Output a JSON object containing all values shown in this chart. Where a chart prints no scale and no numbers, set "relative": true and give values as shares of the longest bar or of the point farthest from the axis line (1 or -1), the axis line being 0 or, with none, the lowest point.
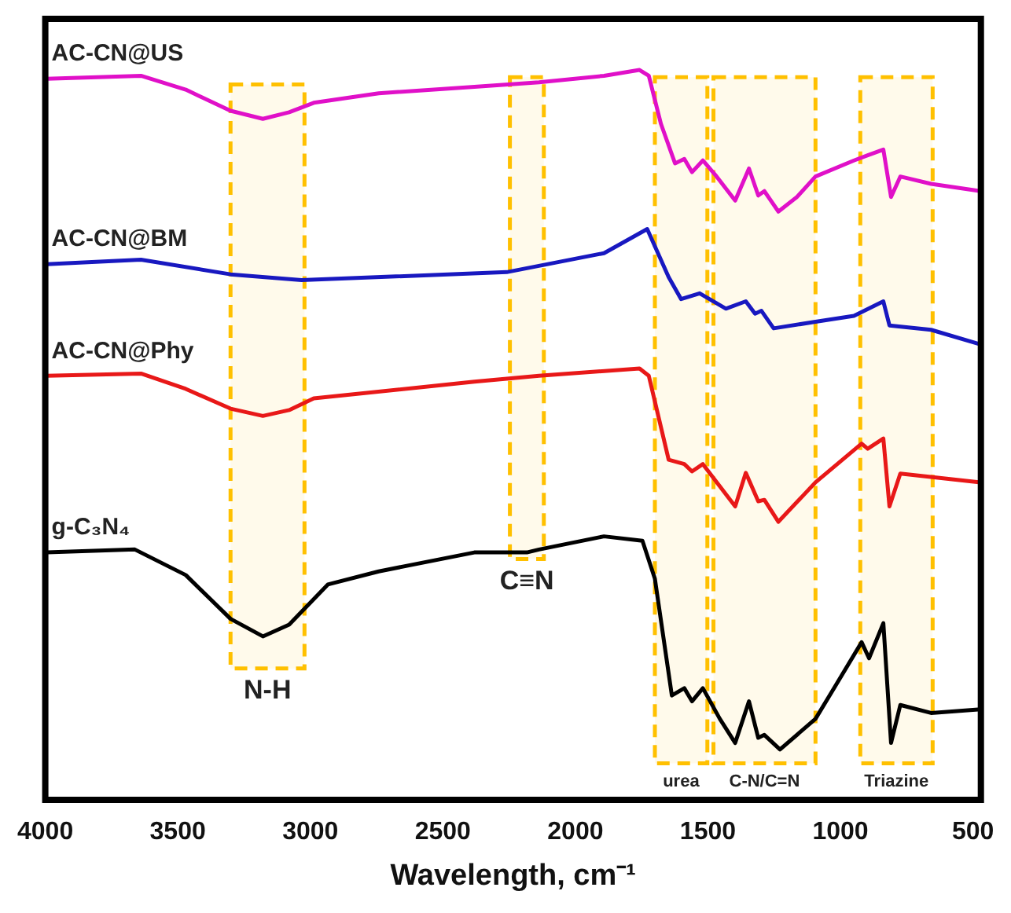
{
  "chart_data": {
    "type": "line",
    "relative": true,
    "xlabel": "Wavelength, cm⁻¹",
    "xlim": [
      4000,
      470
    ],
    "xticks": [
      4000,
      3500,
      3000,
      2500,
      2000,
      1500,
      1000,
      500
    ],
    "x": [
      3994,
      3639,
      3470,
      3301,
      3179,
      3080,
      2987,
      2742,
      2381,
      2137,
      1892,
      1758,
      1723,
      1677,
      1624,
      1589,
      1560,
      1519,
      1467,
      1397,
      1345,
      1310,
      1287,
      1234,
      1164,
      1094,
      949,
      897,
      838,
      809,
      774,
      658,
      471
    ],
    "series": [
      {
        "name": "AC-CN@US",
        "color": "#e010c8",
        "values": [
          0.988,
          0.992,
          0.973,
          0.944,
          0.933,
          0.942,
          0.955,
          0.968,
          0.977,
          0.983,
          0.992,
          1.0,
          0.992,
          0.926,
          0.872,
          0.878,
          0.86,
          0.876,
          0.854,
          0.821,
          0.865,
          0.828,
          0.834,
          0.806,
          0.826,
          0.854,
          0.876,
          0.883,
          0.891,
          0.826,
          0.854,
          0.844,
          0.834
        ]
      },
      {
        "name": "AC-CN@BM",
        "color": "#1818c0",
        "x": [
          3994,
          3639,
          3301,
          3033,
          2259,
          1892,
          1729,
          1648,
          1601,
          1531,
          1432,
          1357,
          1322,
          1298,
          1252,
          1094,
          949,
          838,
          815,
          658,
          471
        ],
        "values": [
          0.734,
          0.74,
          0.72,
          0.712,
          0.723,
          0.749,
          0.782,
          0.716,
          0.686,
          0.694,
          0.673,
          0.683,
          0.666,
          0.67,
          0.646,
          0.655,
          0.663,
          0.683,
          0.65,
          0.644,
          0.624
        ]
      },
      {
        "name": "AC-CN@Phy",
        "color": "#e81818",
        "x": [
          3994,
          3639,
          3470,
          3301,
          3179,
          3080,
          2987,
          2381,
          2137,
          1758,
          1723,
          1648,
          1589,
          1560,
          1519,
          1397,
          1357,
          1310,
          1287,
          1234,
          1094,
          920,
          897,
          838,
          815,
          774,
          471
        ],
        "values": [
          0.581,
          0.584,
          0.563,
          0.536,
          0.526,
          0.534,
          0.55,
          0.573,
          0.581,
          0.591,
          0.581,
          0.466,
          0.46,
          0.45,
          0.46,
          0.402,
          0.448,
          0.409,
          0.411,
          0.381,
          0.435,
          0.488,
          0.481,
          0.495,
          0.402,
          0.447,
          0.435
        ]
      },
      {
        "name": "g-C₃N₄",
        "color": "#000000",
        "x": [
          3994,
          3662,
          3470,
          3301,
          3179,
          3080,
          2934,
          2742,
          2381,
          2183,
          2137,
          1892,
          1747,
          1700,
          1636,
          1589,
          1560,
          1519,
          1455,
          1397,
          1345,
          1310,
          1287,
          1228,
          1094,
          1019,
          920,
          892,
          838,
          809,
          774,
          658,
          471
        ],
        "values": [
          0.339,
          0.343,
          0.308,
          0.248,
          0.224,
          0.24,
          0.295,
          0.313,
          0.339,
          0.339,
          0.343,
          0.361,
          0.355,
          0.303,
          0.143,
          0.153,
          0.135,
          0.153,
          0.111,
          0.078,
          0.135,
          0.085,
          0.089,
          0.069,
          0.111,
          0.156,
          0.216,
          0.194,
          0.242,
          0.078,
          0.13,
          0.119,
          0.124
        ]
      }
    ],
    "bands": [
      {
        "axis": "x",
        "from": 3301,
        "to": 3022,
        "label": "N-H",
        "color": "#ffc000"
      },
      {
        "axis": "x",
        "from": 2247,
        "to": 2119,
        "label": "C≡N",
        "color": "#ffc000"
      },
      {
        "axis": "x",
        "from": 1700,
        "to": 1502,
        "label": "urea",
        "color": "#ffc000"
      },
      {
        "axis": "x",
        "from": 1479,
        "to": 1094,
        "label": "C-N/C=N",
        "color": "#ffc000"
      },
      {
        "axis": "x",
        "from": 925,
        "to": 652,
        "label": "Triazine",
        "color": "#ffc000"
      }
    ]
  }
}
